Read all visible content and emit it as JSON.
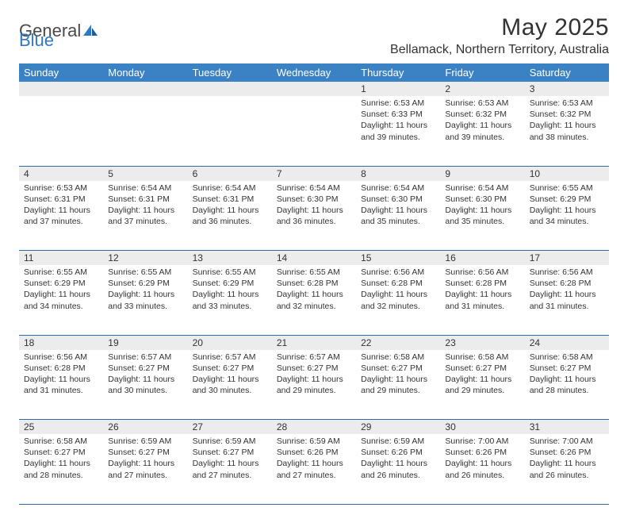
{
  "brand": {
    "part1": "General",
    "part2": "Blue"
  },
  "title": "May 2025",
  "location": "Bellamack, Northern Territory, Australia",
  "day_headers": [
    "Sunday",
    "Monday",
    "Tuesday",
    "Wednesday",
    "Thursday",
    "Friday",
    "Saturday"
  ],
  "header_bg": "#3b82c4",
  "header_fg": "#ffffff",
  "daynum_bg": "#ececec",
  "rule_color": "#2f6aa8",
  "text_color": "#333333",
  "page_bg": "#ffffff",
  "font_family": "Arial, Helvetica, sans-serif",
  "month_title_fontsize": 30,
  "location_fontsize": 16,
  "header_fontsize": 13,
  "daynum_fontsize": 12,
  "content_fontsize": 10.5,
  "weeks": [
    {
      "nums": [
        "",
        "",
        "",
        "",
        "1",
        "2",
        "3"
      ],
      "cells": [
        null,
        null,
        null,
        null,
        {
          "sunrise": "6:53 AM",
          "sunset": "6:33 PM",
          "daylight": "11 hours and 39 minutes."
        },
        {
          "sunrise": "6:53 AM",
          "sunset": "6:32 PM",
          "daylight": "11 hours and 39 minutes."
        },
        {
          "sunrise": "6:53 AM",
          "sunset": "6:32 PM",
          "daylight": "11 hours and 38 minutes."
        }
      ]
    },
    {
      "nums": [
        "4",
        "5",
        "6",
        "7",
        "8",
        "9",
        "10"
      ],
      "cells": [
        {
          "sunrise": "6:53 AM",
          "sunset": "6:31 PM",
          "daylight": "11 hours and 37 minutes."
        },
        {
          "sunrise": "6:54 AM",
          "sunset": "6:31 PM",
          "daylight": "11 hours and 37 minutes."
        },
        {
          "sunrise": "6:54 AM",
          "sunset": "6:31 PM",
          "daylight": "11 hours and 36 minutes."
        },
        {
          "sunrise": "6:54 AM",
          "sunset": "6:30 PM",
          "daylight": "11 hours and 36 minutes."
        },
        {
          "sunrise": "6:54 AM",
          "sunset": "6:30 PM",
          "daylight": "11 hours and 35 minutes."
        },
        {
          "sunrise": "6:54 AM",
          "sunset": "6:30 PM",
          "daylight": "11 hours and 35 minutes."
        },
        {
          "sunrise": "6:55 AM",
          "sunset": "6:29 PM",
          "daylight": "11 hours and 34 minutes."
        }
      ]
    },
    {
      "nums": [
        "11",
        "12",
        "13",
        "14",
        "15",
        "16",
        "17"
      ],
      "cells": [
        {
          "sunrise": "6:55 AM",
          "sunset": "6:29 PM",
          "daylight": "11 hours and 34 minutes."
        },
        {
          "sunrise": "6:55 AM",
          "sunset": "6:29 PM",
          "daylight": "11 hours and 33 minutes."
        },
        {
          "sunrise": "6:55 AM",
          "sunset": "6:29 PM",
          "daylight": "11 hours and 33 minutes."
        },
        {
          "sunrise": "6:55 AM",
          "sunset": "6:28 PM",
          "daylight": "11 hours and 32 minutes."
        },
        {
          "sunrise": "6:56 AM",
          "sunset": "6:28 PM",
          "daylight": "11 hours and 32 minutes."
        },
        {
          "sunrise": "6:56 AM",
          "sunset": "6:28 PM",
          "daylight": "11 hours and 31 minutes."
        },
        {
          "sunrise": "6:56 AM",
          "sunset": "6:28 PM",
          "daylight": "11 hours and 31 minutes."
        }
      ]
    },
    {
      "nums": [
        "18",
        "19",
        "20",
        "21",
        "22",
        "23",
        "24"
      ],
      "cells": [
        {
          "sunrise": "6:56 AM",
          "sunset": "6:28 PM",
          "daylight": "11 hours and 31 minutes."
        },
        {
          "sunrise": "6:57 AM",
          "sunset": "6:27 PM",
          "daylight": "11 hours and 30 minutes."
        },
        {
          "sunrise": "6:57 AM",
          "sunset": "6:27 PM",
          "daylight": "11 hours and 30 minutes."
        },
        {
          "sunrise": "6:57 AM",
          "sunset": "6:27 PM",
          "daylight": "11 hours and 29 minutes."
        },
        {
          "sunrise": "6:58 AM",
          "sunset": "6:27 PM",
          "daylight": "11 hours and 29 minutes."
        },
        {
          "sunrise": "6:58 AM",
          "sunset": "6:27 PM",
          "daylight": "11 hours and 29 minutes."
        },
        {
          "sunrise": "6:58 AM",
          "sunset": "6:27 PM",
          "daylight": "11 hours and 28 minutes."
        }
      ]
    },
    {
      "nums": [
        "25",
        "26",
        "27",
        "28",
        "29",
        "30",
        "31"
      ],
      "cells": [
        {
          "sunrise": "6:58 AM",
          "sunset": "6:27 PM",
          "daylight": "11 hours and 28 minutes."
        },
        {
          "sunrise": "6:59 AM",
          "sunset": "6:27 PM",
          "daylight": "11 hours and 27 minutes."
        },
        {
          "sunrise": "6:59 AM",
          "sunset": "6:27 PM",
          "daylight": "11 hours and 27 minutes."
        },
        {
          "sunrise": "6:59 AM",
          "sunset": "6:26 PM",
          "daylight": "11 hours and 27 minutes."
        },
        {
          "sunrise": "6:59 AM",
          "sunset": "6:26 PM",
          "daylight": "11 hours and 26 minutes."
        },
        {
          "sunrise": "7:00 AM",
          "sunset": "6:26 PM",
          "daylight": "11 hours and 26 minutes."
        },
        {
          "sunrise": "7:00 AM",
          "sunset": "6:26 PM",
          "daylight": "11 hours and 26 minutes."
        }
      ]
    }
  ],
  "labels": {
    "sunrise": "Sunrise:",
    "sunset": "Sunset:",
    "daylight": "Daylight:"
  }
}
